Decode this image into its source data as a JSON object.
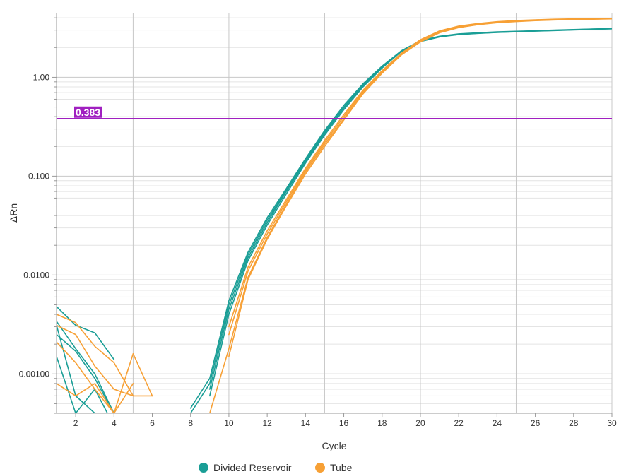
{
  "chart_data": {
    "type": "line",
    "xlabel": "Cycle",
    "ylabel": "ΔRn",
    "xlim": [
      1,
      30
    ],
    "ylim": [
      0.0004,
      4.5
    ],
    "y_scale": "log",
    "x_ticks": [
      2,
      4,
      6,
      8,
      10,
      12,
      14,
      16,
      18,
      20,
      22,
      24,
      26,
      28,
      30
    ],
    "x_tick_labels": [
      "2",
      "4",
      "6",
      "8",
      "10",
      "12",
      "14",
      "16",
      "18",
      "20",
      "22",
      "24",
      "26",
      "28",
      "30"
    ],
    "y_ticks": [
      0.001,
      0.01,
      0.1,
      1
    ],
    "y_tick_labels": [
      "0.00100",
      "0.0100",
      "0.100",
      "1.00"
    ],
    "grid": true,
    "legend_position": "bottom",
    "threshold": {
      "value": 0.383,
      "label": "0.383",
      "color": "#a020c0"
    },
    "series": [
      {
        "name": "Divided Reservoir",
        "color": "#1a9e96",
        "lines": [
          {
            "x": [
              1,
              2,
              3,
              4,
              5,
              6,
              7,
              8,
              9,
              10,
              11,
              12,
              13,
              14,
              15,
              16,
              17,
              18,
              19,
              20,
              21,
              22,
              23,
              24,
              25,
              26,
              27,
              28,
              29,
              30
            ],
            "y": [
              0.0048,
              0.0031,
              0.0026,
              0.0014,
              null,
              null,
              null,
              0.00045,
              0.0009,
              0.0055,
              0.017,
              0.038,
              0.075,
              0.15,
              0.29,
              0.52,
              0.86,
              1.3,
              1.85,
              2.35,
              2.6,
              2.75,
              2.82,
              2.88,
              2.92,
              2.96,
              3.0,
              3.04,
              3.08,
              3.12
            ]
          },
          {
            "x": [
              1,
              2,
              3,
              4,
              5,
              6,
              7,
              8,
              9,
              10,
              11,
              12,
              13,
              14,
              15,
              16,
              17,
              18,
              19,
              20,
              21,
              22,
              23,
              24,
              25,
              26,
              27,
              28,
              29,
              30
            ],
            "y": [
              0.0034,
              0.0018,
              0.001,
              0.0004,
              null,
              null,
              null,
              0.0004,
              0.0008,
              0.005,
              0.016,
              0.036,
              0.072,
              0.145,
              0.28,
              0.5,
              0.84,
              1.28,
              1.85,
              2.33,
              2.58,
              2.72,
              2.8,
              2.86,
              2.9,
              2.95,
              2.99,
              3.03,
              3.07,
              3.11
            ]
          },
          {
            "x": [
              1,
              2,
              3,
              4,
              5,
              6,
              7,
              8,
              9,
              10,
              11,
              12,
              13,
              14,
              15,
              16,
              17,
              18,
              19,
              20,
              21,
              22,
              23,
              24,
              25,
              26,
              27,
              28,
              29,
              30
            ],
            "y": [
              0.0025,
              0.0017,
              0.0009,
              0.0004,
              null,
              null,
              null,
              null,
              0.0007,
              0.0045,
              0.015,
              0.034,
              0.07,
              0.14,
              0.27,
              0.49,
              0.82,
              1.26,
              1.83,
              2.32,
              2.57,
              2.71,
              2.79,
              2.85,
              2.89,
              2.94,
              2.98,
              3.02,
              3.06,
              3.1
            ]
          },
          {
            "x": [
              1,
              2,
              3,
              4,
              5,
              6,
              7,
              8,
              9,
              10,
              11,
              12,
              13,
              14,
              15,
              16,
              17,
              18,
              19,
              20,
              21,
              22,
              23,
              24,
              25,
              26,
              27,
              28,
              29,
              30
            ],
            "y": [
              0.0015,
              0.0004,
              0.0007,
              0.0003,
              null,
              null,
              null,
              null,
              0.0006,
              0.004,
              0.014,
              0.032,
              0.066,
              0.135,
              0.26,
              0.47,
              0.8,
              1.24,
              1.82,
              2.3,
              2.56,
              2.7,
              2.78,
              2.84,
              2.88,
              2.93,
              2.97,
              3.01,
              3.05,
              3.09
            ]
          },
          {
            "x": [
              1,
              2,
              3,
              4
            ],
            "y": [
              0.0031,
              0.0006,
              0.0004,
              0.0003
            ]
          }
        ]
      },
      {
        "name": "Tube",
        "color": "#f7a035",
        "lines": [
          {
            "x": [
              1,
              2,
              3,
              4,
              5,
              6,
              7,
              8,
              9,
              10,
              11,
              12,
              13,
              14,
              15,
              16,
              17,
              18,
              19,
              20,
              21,
              22,
              23,
              24,
              25,
              26,
              27,
              28,
              29,
              30
            ],
            "y": [
              0.004,
              0.0033,
              0.0019,
              0.0013,
              0.0006,
              0.0006,
              null,
              null,
              null,
              0.003,
              0.012,
              0.028,
              0.058,
              0.12,
              0.23,
              0.42,
              0.74,
              1.17,
              1.75,
              2.4,
              2.95,
              3.3,
              3.5,
              3.65,
              3.75,
              3.82,
              3.87,
              3.9,
              3.92,
              3.95
            ]
          },
          {
            "x": [
              1,
              2,
              3,
              4,
              5,
              6,
              7,
              8,
              9,
              10,
              11,
              12,
              13,
              14,
              15,
              16,
              17,
              18,
              19,
              20,
              21,
              22,
              23,
              24,
              25,
              26,
              27,
              28,
              29,
              30
            ],
            "y": [
              0.0031,
              0.0025,
              0.0012,
              0.0007,
              0.0006,
              null,
              null,
              null,
              null,
              0.0025,
              0.011,
              0.026,
              0.055,
              0.115,
              0.22,
              0.4,
              0.72,
              1.15,
              1.73,
              2.35,
              2.9,
              3.25,
              3.46,
              3.61,
              3.71,
              3.79,
              3.84,
              3.88,
              3.9,
              3.93
            ]
          },
          {
            "x": [
              1,
              2,
              3,
              4,
              5,
              6,
              7,
              8,
              9,
              10,
              11,
              12,
              13,
              14,
              15,
              16,
              17,
              18,
              19,
              20,
              21,
              22,
              23,
              24,
              25,
              26,
              27,
              28,
              29,
              30
            ],
            "y": [
              0.0008,
              0.0006,
              0.0008,
              0.0004,
              0.0016,
              0.0006,
              null,
              null,
              0.0004,
              0.0018,
              0.0095,
              0.024,
              0.052,
              0.11,
              0.21,
              0.38,
              0.7,
              1.12,
              1.7,
              2.3,
              2.85,
              3.2,
              3.42,
              3.58,
              3.68,
              3.76,
              3.81,
              3.85,
              3.88,
              3.91
            ]
          },
          {
            "x": [
              1,
              2,
              3,
              4,
              5,
              6,
              7,
              8,
              9,
              10,
              11,
              12,
              13,
              14,
              15,
              16,
              17,
              18,
              19,
              20,
              21,
              22,
              23,
              24,
              25,
              26,
              27,
              28,
              29,
              30
            ],
            "y": [
              0.0021,
              0.0013,
              0.0007,
              0.0004,
              0.0008,
              null,
              null,
              null,
              null,
              0.0015,
              0.009,
              0.023,
              0.05,
              0.105,
              0.2,
              0.37,
              0.68,
              1.1,
              1.68,
              2.28,
              2.82,
              3.18,
              3.4,
              3.56,
              3.66,
              3.74,
              3.8,
              3.84,
              3.87,
              3.9
            ]
          }
        ]
      }
    ]
  }
}
